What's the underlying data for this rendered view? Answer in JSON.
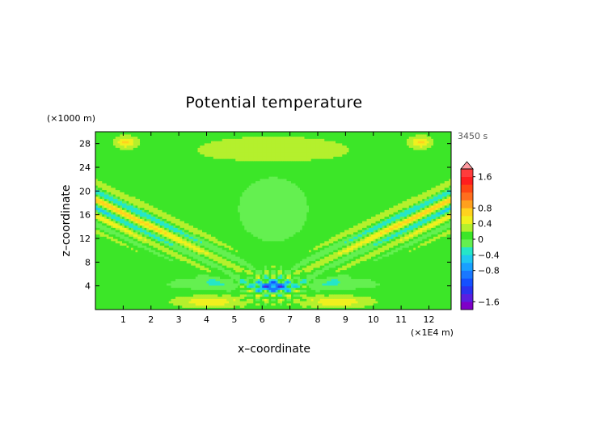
{
  "chart_data": {
    "type": "heatmap",
    "title": "Potential temperature",
    "xlabel": "x–coordinate",
    "ylabel": "z–coordinate",
    "x_unit": "(×1E4 m)",
    "y_unit": "(×1000 m)",
    "time_label": "3450 s",
    "xlim": [
      0,
      12.8
    ],
    "ylim": [
      0,
      30
    ],
    "x_ticks": [
      1,
      2,
      3,
      4,
      5,
      6,
      7,
      8,
      9,
      10,
      11,
      12
    ],
    "y_ticks": [
      4,
      8,
      12,
      16,
      20,
      24,
      28
    ],
    "colorbar": {
      "range": [
        -1.8,
        1.8
      ],
      "tick_values": [
        1.6,
        0.8,
        0.4,
        0,
        -0.4,
        -0.8,
        -1.6
      ],
      "tick_labels": [
        "1.6",
        "0.8",
        "0.4",
        "0",
        "−0.4",
        "−0.8",
        "−1.6"
      ],
      "levels": [
        -1.8,
        -1.6,
        -1.4,
        -1.2,
        -1.0,
        -0.8,
        -0.6,
        -0.4,
        -0.2,
        0,
        0.2,
        0.4,
        0.6,
        0.8,
        1.0,
        1.2,
        1.4,
        1.6,
        1.8
      ],
      "colors": [
        "#7f00c8",
        "#5a1ee0",
        "#2a32f0",
        "#1450ff",
        "#1a78ff",
        "#19a0ff",
        "#1fc8f0",
        "#25e6c8",
        "#64f050",
        "#3ce628",
        "#b4f02d",
        "#f0f01e",
        "#ffd21e",
        "#ffa01e",
        "#ff6e1e",
        "#ff4614",
        "#ff1e1e",
        "#ff3c3c"
      ],
      "extend_top_color": "#ff9aa0"
    }
  }
}
